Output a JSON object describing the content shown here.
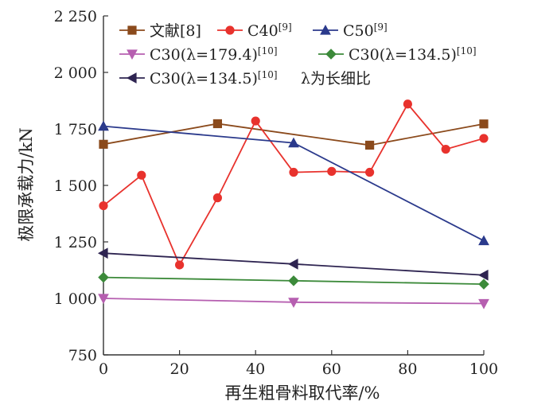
{
  "chart_data": {
    "type": "line",
    "title": "",
    "xlabel": "再生粗骨料取代率/%",
    "ylabel": "极限承载力/kN",
    "xlim": [
      0,
      100
    ],
    "ylim": [
      750,
      2250
    ],
    "xticks": [
      0,
      20,
      40,
      60,
      80,
      100
    ],
    "xtick_labels": [
      "0",
      "20",
      "40",
      "60",
      "80",
      "100"
    ],
    "yticks": [
      750,
      1000,
      1250,
      1500,
      1750,
      2000,
      2250
    ],
    "ytick_labels": [
      "750",
      "1 000",
      "1 250",
      "1 500",
      "1 750",
      "2 000",
      "2 250"
    ],
    "grid": false,
    "legend_position": "top",
    "legend_note": "λ为长细比",
    "series": [
      {
        "name": "文献[8]",
        "sup": "",
        "color": "#8b4a1c",
        "marker": "square",
        "x": [
          0,
          30,
          70,
          100
        ],
        "y": [
          1682,
          1773,
          1678,
          1772
        ]
      },
      {
        "name": "C40",
        "sup": "[9]",
        "color": "#e8322d",
        "marker": "circle",
        "x": [
          0,
          10,
          20,
          30,
          40,
          50,
          60,
          70,
          80,
          90,
          100
        ],
        "y": [
          1410,
          1545,
          1148,
          1445,
          1785,
          1558,
          1562,
          1558,
          1860,
          1660,
          1708
        ]
      },
      {
        "name": "C50",
        "sup": "[9]",
        "color": "#2b3a8c",
        "marker": "triangle-up",
        "x": [
          0,
          50,
          100
        ],
        "y": [
          1762,
          1688,
          1255
        ]
      },
      {
        "name": "C30(λ=179.4)",
        "sup": "[10]",
        "color": "#b65fb0",
        "marker": "triangle-down",
        "x": [
          0,
          50,
          100
        ],
        "y": [
          1000,
          983,
          977
        ]
      },
      {
        "name": "C30(λ=134.5)",
        "sup": "[10]",
        "color": "#3c8a3a",
        "marker": "diamond",
        "x": [
          0,
          50,
          100
        ],
        "y": [
          1093,
          1078,
          1063
        ]
      },
      {
        "name": "C30(λ=134.5)",
        "sup": "[10]",
        "color": "#2e2451",
        "marker": "triangle-left",
        "x": [
          0,
          50,
          100
        ],
        "y": [
          1200,
          1152,
          1103
        ]
      }
    ]
  }
}
